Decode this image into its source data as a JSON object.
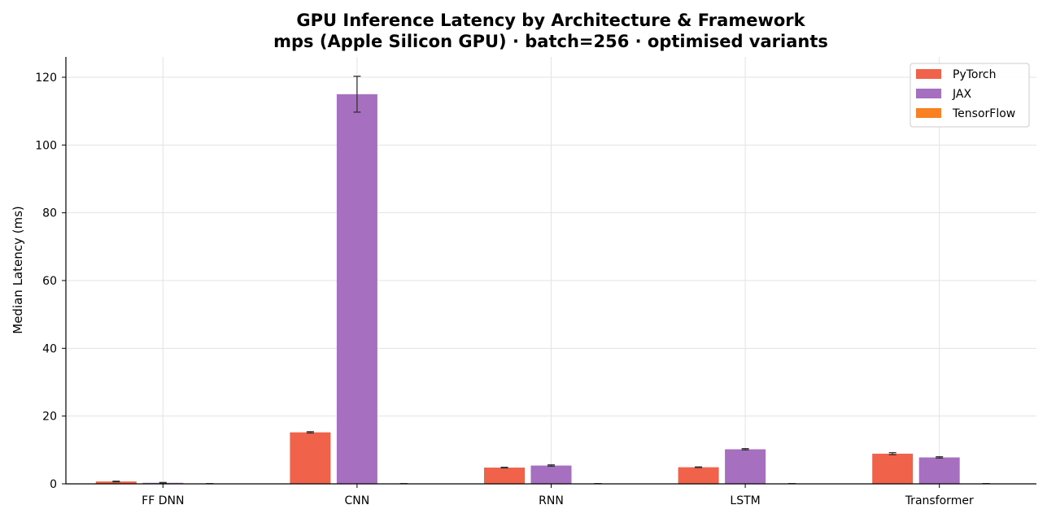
{
  "chart_data": {
    "type": "bar",
    "title": "GPU Inference Latency by Architecture & Framework",
    "subtitle": "mps (Apple Silicon GPU)  ·  batch=256  ·  optimised variants",
    "xlabel": "",
    "ylabel": "Median Latency (ms)",
    "ylim": [
      0,
      126
    ],
    "yticks": [
      0,
      20,
      40,
      60,
      80,
      100,
      120
    ],
    "grid": true,
    "legend_position": "top-right",
    "categories": [
      "FF DNN",
      "CNN",
      "RNN",
      "LSTM",
      "Transformer"
    ],
    "series": [
      {
        "name": "PyTorch",
        "color": "#f0634a",
        "values": [
          0.7,
          15.2,
          4.8,
          4.9,
          8.9
        ],
        "errors": [
          0.1,
          0.2,
          0.1,
          0.1,
          0.3
        ]
      },
      {
        "name": "JAX",
        "color": "#a66fbf",
        "values": [
          0.3,
          115.0,
          5.4,
          10.2,
          7.8
        ],
        "errors": [
          0.1,
          5.3,
          0.2,
          0.2,
          0.2
        ]
      },
      {
        "name": "TensorFlow",
        "color": "#fa8123",
        "values": [
          0.05,
          0.05,
          0.05,
          0.05,
          0.05
        ],
        "errors": [
          0.0,
          0.0,
          0.0,
          0.0,
          0.0
        ]
      }
    ]
  }
}
